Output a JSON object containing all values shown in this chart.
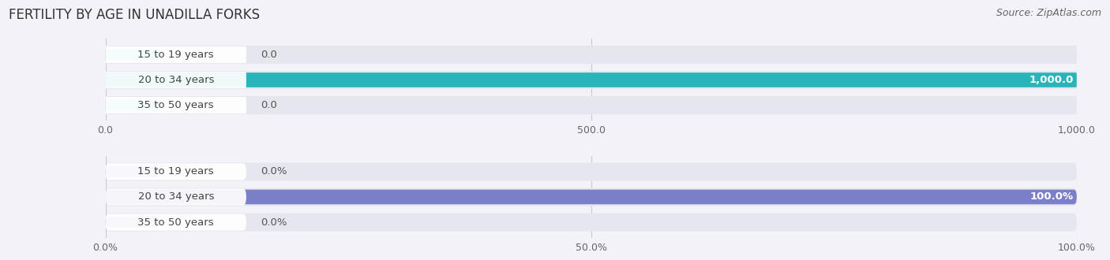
{
  "title": "FERTILITY BY AGE IN UNADILLA FORKS",
  "source": "Source: ZipAtlas.com",
  "top_chart": {
    "categories": [
      "15 to 19 years",
      "20 to 34 years",
      "35 to 50 years"
    ],
    "values": [
      0.0,
      1000.0,
      0.0
    ],
    "bar_color_full": "#29b4ba",
    "bar_color_zero": "#7dd8dc",
    "bg_bar_color": "#e6e6ef",
    "xlim": [
      0,
      1000
    ],
    "xticks": [
      0.0,
      500.0,
      1000.0
    ],
    "xtick_labels": [
      "0.0",
      "500.0",
      "1,000.0"
    ]
  },
  "bottom_chart": {
    "categories": [
      "15 to 19 years",
      "20 to 34 years",
      "35 to 50 years"
    ],
    "values": [
      0.0,
      100.0,
      0.0
    ],
    "bar_color_full": "#7b7ec8",
    "bar_color_zero": "#adaddf",
    "bg_bar_color": "#e6e6ef",
    "xlim": [
      0,
      100
    ],
    "xticks": [
      0.0,
      50.0,
      100.0
    ],
    "xtick_labels": [
      "0.0%",
      "50.0%",
      "100.0%"
    ]
  },
  "label_fontsize": 9.5,
  "tick_fontsize": 9,
  "title_fontsize": 12,
  "source_fontsize": 9,
  "fig_bg_color": "#f2f2f8",
  "white_label_color": "#ffffff",
  "dark_label_color": "#444444",
  "value_label_color": "#555555"
}
